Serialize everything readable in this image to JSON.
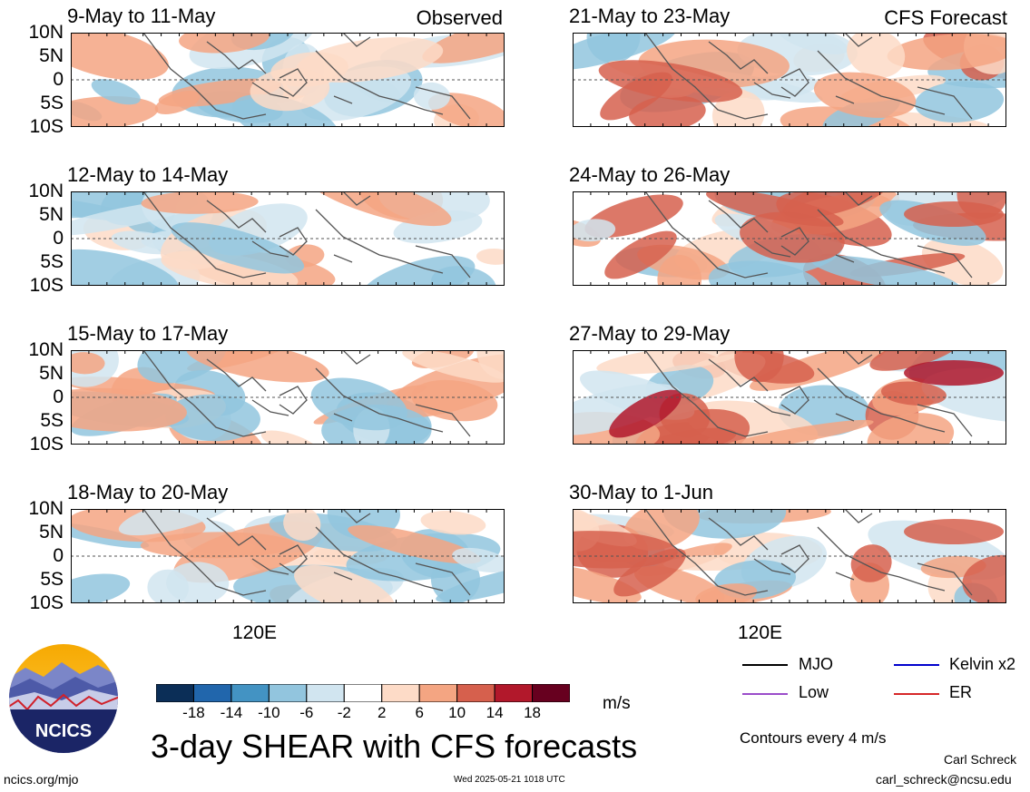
{
  "chart_data": {
    "type": "heatmap",
    "title": "3-day SHEAR with CFS forecasts",
    "column_labels": [
      "Observed",
      "CFS Forecast"
    ],
    "yticks": [
      "10N",
      "5N",
      "0",
      "5S",
      "10S"
    ],
    "xticks": [
      "120E"
    ],
    "panels": [
      {
        "period": "9-May to 11-May",
        "source": "observed"
      },
      {
        "period": "12-May to 14-May",
        "source": "observed"
      },
      {
        "period": "15-May to 17-May",
        "source": "observed"
      },
      {
        "period": "18-May to 20-May",
        "source": "observed"
      },
      {
        "period": "21-May to 23-May",
        "source": "forecast"
      },
      {
        "period": "24-May to 26-May",
        "source": "forecast"
      },
      {
        "period": "27-May to 29-May",
        "source": "forecast"
      },
      {
        "period": "30-May to 1-Jun",
        "source": "forecast"
      }
    ],
    "colorbar": {
      "unit": "m/s",
      "ticks": [
        "-18",
        "-14",
        "-10",
        "-6",
        "-2",
        "2",
        "6",
        "10",
        "14",
        "18"
      ],
      "colors": [
        "#0b2e57",
        "#2166ac",
        "#4393c3",
        "#92c5de",
        "#d1e5f0",
        "#ffffff",
        "#fddbc7",
        "#f4a582",
        "#d6604d",
        "#b2182b",
        "#67001f"
      ]
    },
    "legend": [
      {
        "name": "MJO",
        "color": "#000000"
      },
      {
        "name": "Kelvin x2",
        "color": "#0000cc"
      },
      {
        "name": "Low",
        "color": "#9b4dca"
      },
      {
        "name": "ER",
        "color": "#d62728"
      }
    ],
    "contour_note": "Contours every 4 m/s"
  },
  "footer": {
    "site": "ncics.org/mjo",
    "timestamp": "Wed 2025-05-21 1018 UTC",
    "author": "Carl Schreck",
    "email": "carl_schreck@ncsu.edu",
    "logo_text": "NCICS"
  }
}
